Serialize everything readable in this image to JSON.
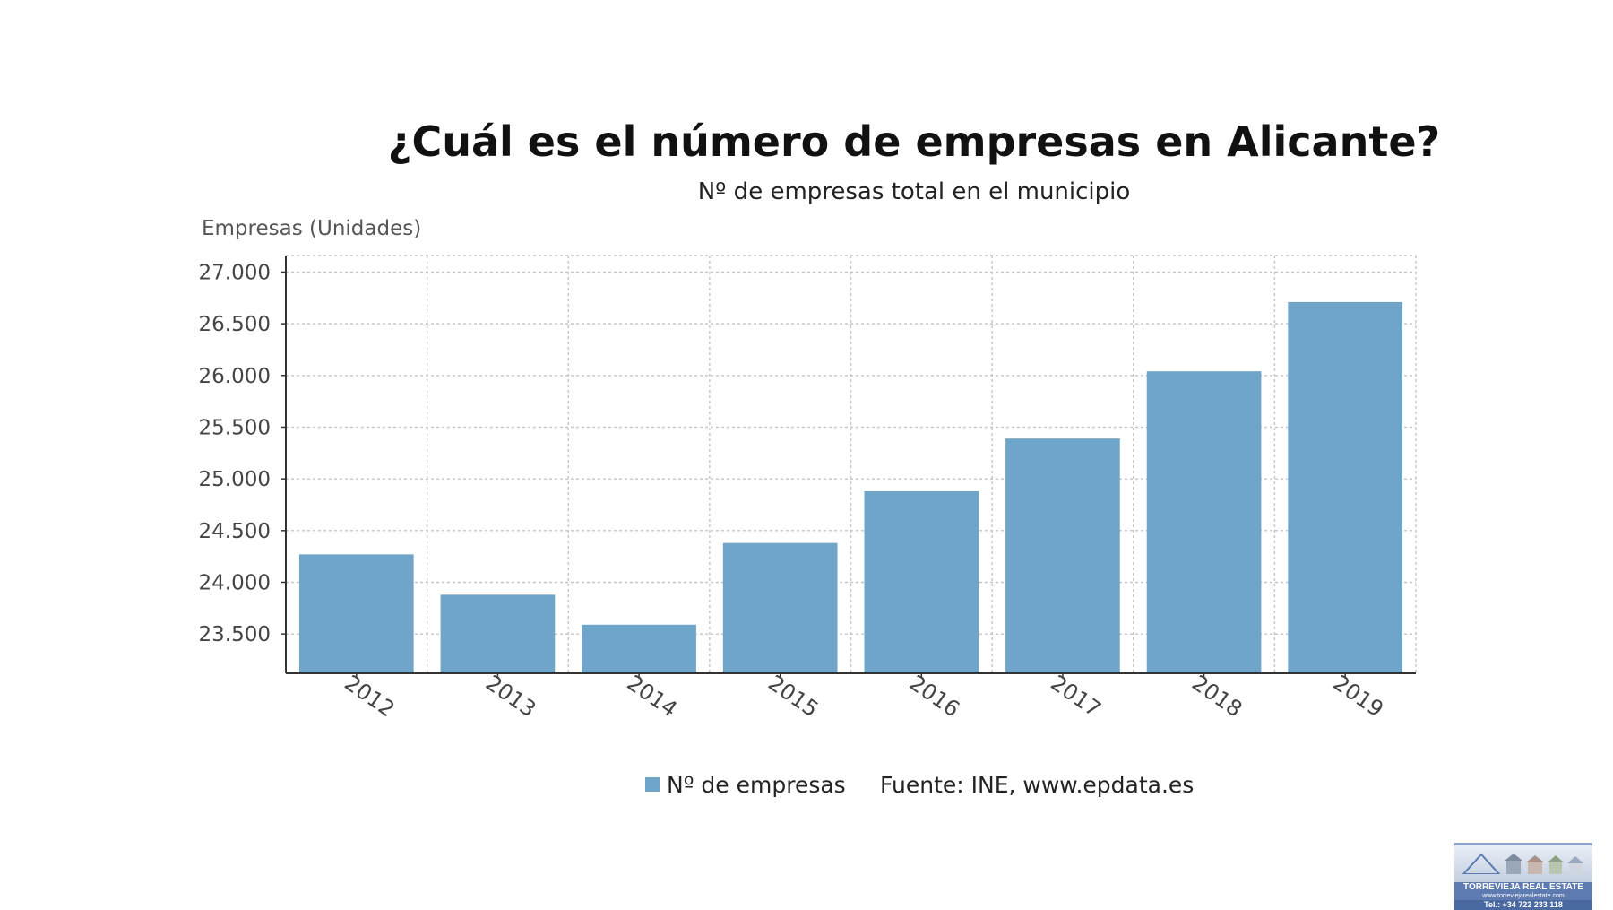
{
  "chart_data": {
    "type": "bar",
    "title": "¿Cuál es el número de empresas en Alicante?",
    "subtitle": "Nº de empresas total en el municipio",
    "ylabel": "Empresas (Unidades)",
    "xlabel": "",
    "categories": [
      "2012",
      "2013",
      "2014",
      "2015",
      "2016",
      "2017",
      "2018",
      "2019"
    ],
    "series": [
      {
        "name": "Nº de empresas",
        "color": "#6fa5c9",
        "values": [
          24270,
          23880,
          23590,
          24380,
          24880,
          25390,
          26040,
          26710
        ]
      }
    ],
    "ylim": [
      23120,
      27160
    ],
    "yticks": [
      23500,
      24000,
      24500,
      25000,
      25500,
      26000,
      26500,
      27000
    ],
    "ytick_labels": [
      "23.500",
      "24.000",
      "24.500",
      "25.000",
      "25.500",
      "26.000",
      "26.500",
      "27.000"
    ],
    "grid": true,
    "legend_position": "bottom"
  },
  "source": "Fuente: INE, www.epdata.es",
  "watermark": {
    "name": "TORREVIEJA REAL ESTATE",
    "website": "www.torreviejarealestate.com",
    "phone": "Tel.: +34 722 233 118"
  }
}
